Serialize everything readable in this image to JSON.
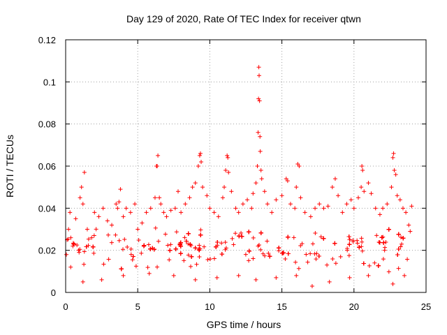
{
  "chart_data": {
    "type": "scatter",
    "title": "Day 129 of 2020, Rate Of TEC Index for receiver qtwn",
    "xlabel": "GPS time / hours",
    "ylabel": "ROTI / TECUs",
    "xlim": [
      0,
      25
    ],
    "ylim": [
      0,
      0.12
    ],
    "x_ticks": [
      0,
      5,
      10,
      15,
      20,
      25
    ],
    "x_tick_labels": [
      "0",
      "5",
      "10",
      "15",
      "20",
      "25"
    ],
    "y_ticks": [
      0,
      0.02,
      0.04,
      0.06,
      0.08,
      0.1,
      0.12
    ],
    "y_tick_labels": [
      "0",
      "0.02",
      "0.04",
      "0.06",
      "0.08",
      "0.1",
      "0.12"
    ],
    "grid": true,
    "marker": "+",
    "color": "#ff0000",
    "data_range_x": [
      0,
      24
    ],
    "bulk_band_y": [
      0.008,
      0.03
    ],
    "series": [
      {
        "name": "ROTI",
        "points": [
          [
            0.05,
            0.018
          ],
          [
            0.1,
            0.025
          ],
          [
            0.2,
            0.03
          ],
          [
            0.3,
            0.038
          ],
          [
            0.35,
            0.012
          ],
          [
            0.5,
            0.022
          ],
          [
            0.7,
            0.035
          ],
          [
            0.9,
            0.02
          ],
          [
            1.0,
            0.045
          ],
          [
            1.1,
            0.05
          ],
          [
            1.2,
            0.042
          ],
          [
            1.3,
            0.057
          ],
          [
            1.5,
            0.03
          ],
          [
            1.8,
            0.026
          ],
          [
            2.0,
            0.038
          ],
          [
            2.3,
            0.036
          ],
          [
            2.6,
            0.04
          ],
          [
            2.9,
            0.034
          ],
          [
            3.2,
            0.032
          ],
          [
            3.5,
            0.042
          ],
          [
            3.6,
            0.04
          ],
          [
            3.7,
            0.043
          ],
          [
            3.8,
            0.049
          ],
          [
            4.0,
            0.036
          ],
          [
            4.2,
            0.04
          ],
          [
            4.5,
            0.038
          ],
          [
            4.8,
            0.042
          ],
          [
            5.0,
            0.03
          ],
          [
            5.3,
            0.033
          ],
          [
            5.6,
            0.038
          ],
          [
            5.9,
            0.04
          ],
          [
            6.2,
            0.045
          ],
          [
            6.3,
            0.06
          ],
          [
            6.35,
            0.06
          ],
          [
            6.4,
            0.065
          ],
          [
            6.5,
            0.045
          ],
          [
            6.6,
            0.042
          ],
          [
            6.8,
            0.038
          ],
          [
            7.0,
            0.036
          ],
          [
            7.3,
            0.039
          ],
          [
            7.6,
            0.04
          ],
          [
            7.8,
            0.048
          ],
          [
            8.0,
            0.038
          ],
          [
            8.3,
            0.042
          ],
          [
            8.6,
            0.045
          ],
          [
            8.8,
            0.05
          ],
          [
            9.0,
            0.052
          ],
          [
            9.2,
            0.06
          ],
          [
            9.3,
            0.065
          ],
          [
            9.35,
            0.066
          ],
          [
            9.4,
            0.062
          ],
          [
            9.5,
            0.05
          ],
          [
            9.8,
            0.046
          ],
          [
            10.0,
            0.04
          ],
          [
            10.3,
            0.038
          ],
          [
            10.6,
            0.036
          ],
          [
            10.9,
            0.045
          ],
          [
            11.0,
            0.05
          ],
          [
            11.1,
            0.058
          ],
          [
            11.2,
            0.065
          ],
          [
            11.25,
            0.064
          ],
          [
            11.3,
            0.057
          ],
          [
            11.5,
            0.048
          ],
          [
            11.8,
            0.04
          ],
          [
            12.0,
            0.038
          ],
          [
            12.3,
            0.042
          ],
          [
            12.6,
            0.044
          ],
          [
            12.9,
            0.04
          ],
          [
            13.0,
            0.047
          ],
          [
            13.2,
            0.052
          ],
          [
            13.3,
            0.06
          ],
          [
            13.35,
            0.076
          ],
          [
            13.38,
            0.092
          ],
          [
            13.4,
            0.107
          ],
          [
            13.42,
            0.103
          ],
          [
            13.45,
            0.091
          ],
          [
            13.48,
            0.074
          ],
          [
            13.5,
            0.067
          ],
          [
            13.55,
            0.058
          ],
          [
            13.6,
            0.054
          ],
          [
            13.8,
            0.048
          ],
          [
            14.0,
            0.042
          ],
          [
            14.3,
            0.038
          ],
          [
            14.6,
            0.044
          ],
          [
            15.0,
            0.046
          ],
          [
            15.3,
            0.054
          ],
          [
            15.4,
            0.053
          ],
          [
            15.6,
            0.042
          ],
          [
            15.9,
            0.04
          ],
          [
            16.0,
            0.05
          ],
          [
            16.1,
            0.061
          ],
          [
            16.2,
            0.06
          ],
          [
            16.3,
            0.045
          ],
          [
            16.6,
            0.038
          ],
          [
            17.0,
            0.036
          ],
          [
            17.3,
            0.04
          ],
          [
            17.6,
            0.042
          ],
          [
            17.9,
            0.04
          ],
          [
            18.2,
            0.041
          ],
          [
            18.5,
            0.05
          ],
          [
            18.7,
            0.054
          ],
          [
            18.9,
            0.046
          ],
          [
            19.2,
            0.038
          ],
          [
            19.5,
            0.042
          ],
          [
            19.8,
            0.044
          ],
          [
            20.0,
            0.04
          ],
          [
            20.3,
            0.045
          ],
          [
            20.5,
            0.05
          ],
          [
            20.55,
            0.06
          ],
          [
            20.6,
            0.058
          ],
          [
            20.7,
            0.048
          ],
          [
            21.0,
            0.052
          ],
          [
            21.2,
            0.047
          ],
          [
            21.5,
            0.04
          ],
          [
            21.8,
            0.037
          ],
          [
            22.0,
            0.04
          ],
          [
            22.3,
            0.042
          ],
          [
            22.6,
            0.05
          ],
          [
            22.7,
            0.064
          ],
          [
            22.75,
            0.066
          ],
          [
            22.8,
            0.058
          ],
          [
            22.9,
            0.056
          ],
          [
            23.0,
            0.046
          ],
          [
            23.2,
            0.044
          ],
          [
            23.4,
            0.04
          ],
          [
            23.6,
            0.038
          ],
          [
            23.8,
            0.032
          ],
          [
            23.9,
            0.029
          ],
          [
            24.0,
            0.041
          ],
          [
            1.2,
            0.005
          ],
          [
            2.5,
            0.006
          ],
          [
            4.0,
            0.008
          ],
          [
            5.8,
            0.009
          ],
          [
            7.5,
            0.008
          ],
          [
            9.0,
            0.006
          ],
          [
            10.5,
            0.007
          ],
          [
            12.0,
            0.008
          ],
          [
            13.2,
            0.006
          ],
          [
            14.6,
            0.007
          ],
          [
            16.0,
            0.008
          ],
          [
            17.1,
            0.003
          ],
          [
            18.3,
            0.005
          ],
          [
            19.7,
            0.007
          ],
          [
            21.0,
            0.008
          ],
          [
            22.7,
            0.004
          ],
          [
            23.5,
            0.008
          ]
        ]
      }
    ]
  }
}
